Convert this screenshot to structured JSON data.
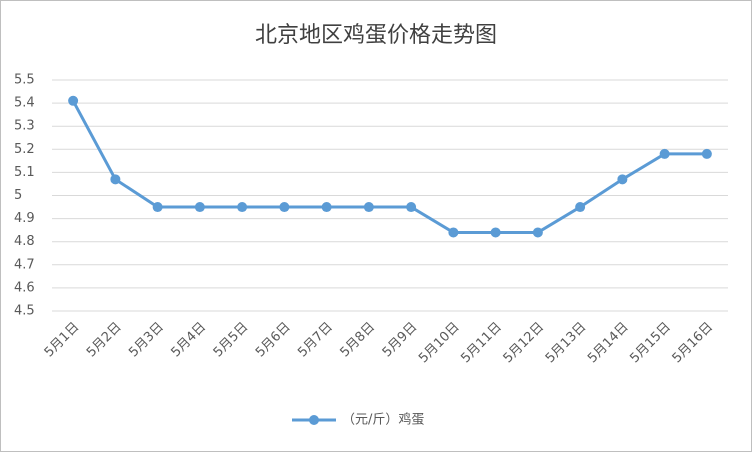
{
  "chart_data": {
    "type": "line",
    "title": "北京地区鸡蛋价格走势图",
    "categories": [
      "5月1日",
      "5月2日",
      "5月3日",
      "5月4日",
      "5月5日",
      "5月6日",
      "5月7日",
      "5月8日",
      "5月9日",
      "5月10日",
      "5月11日",
      "5月12日",
      "5月13日",
      "5月14日",
      "5月15日",
      "5月16日"
    ],
    "series": [
      {
        "name": "（元/斤）鸡蛋",
        "color": "#5b9bd5",
        "values": [
          5.41,
          5.07,
          4.95,
          4.95,
          4.95,
          4.95,
          4.95,
          4.95,
          4.95,
          4.84,
          4.84,
          4.84,
          4.95,
          5.07,
          5.18,
          5.18
        ]
      }
    ],
    "ylim": [
      4.5,
      5.5
    ],
    "yticks": [
      4.5,
      4.6,
      4.7,
      4.8,
      4.9,
      5,
      5.1,
      5.2,
      5.3,
      5.4,
      5.5
    ],
    "grid": true,
    "legend": "bottom"
  }
}
